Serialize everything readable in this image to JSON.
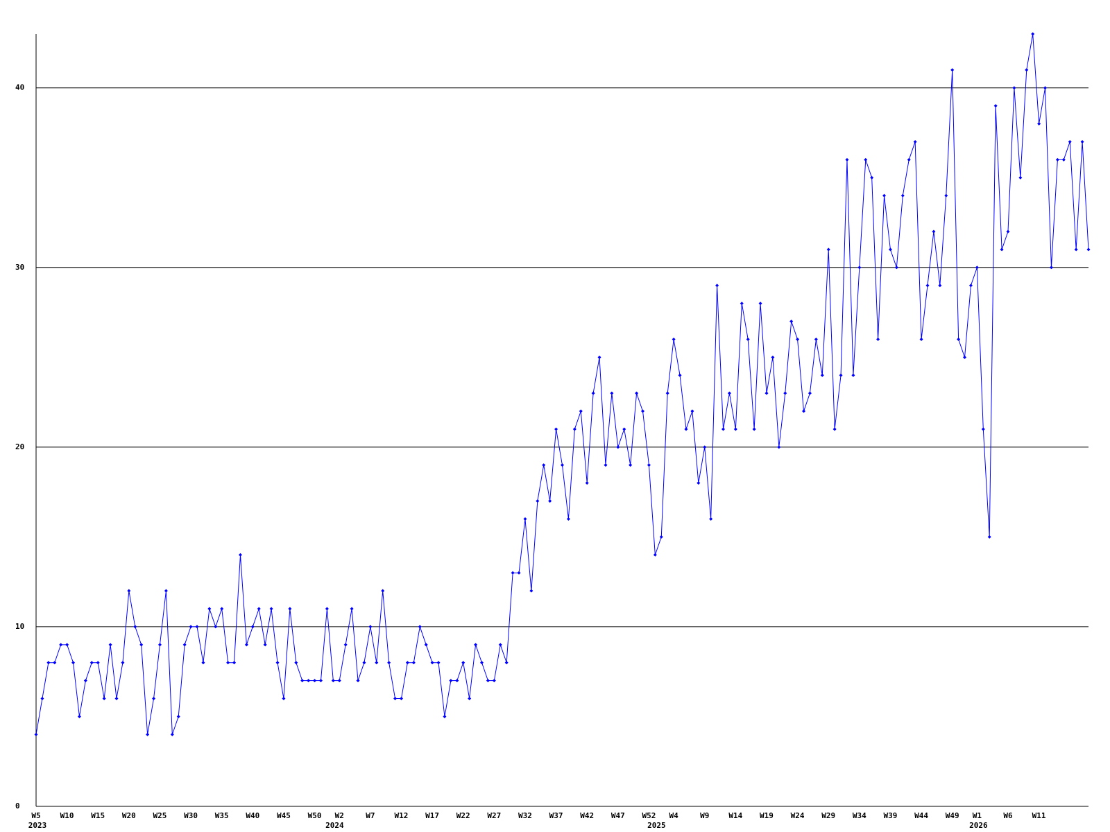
{
  "chart_data": {
    "type": "line",
    "categories": [
      "W5",
      null,
      null,
      null,
      null,
      "W10",
      null,
      null,
      null,
      null,
      "W15",
      null,
      null,
      null,
      null,
      "W20",
      null,
      null,
      null,
      null,
      "W25",
      null,
      null,
      null,
      null,
      "W30",
      null,
      null,
      null,
      null,
      "W35",
      null,
      null,
      null,
      null,
      "W40",
      null,
      null,
      null,
      null,
      "W45",
      null,
      null,
      null,
      null,
      "W50",
      null,
      null,
      null,
      "W2",
      null,
      null,
      null,
      null,
      "W7",
      null,
      null,
      null,
      null,
      "W12",
      null,
      null,
      null,
      null,
      "W17",
      null,
      null,
      null,
      null,
      "W22",
      null,
      null,
      null,
      null,
      "W27",
      null,
      null,
      null,
      null,
      "W32",
      null,
      null,
      null,
      null,
      "W37",
      null,
      null,
      null,
      null,
      "W42",
      null,
      null,
      null,
      null,
      "W47",
      null,
      null,
      null,
      null,
      "W52",
      null,
      null,
      null,
      "W4",
      null,
      null,
      null,
      null,
      "W9",
      null,
      null,
      null,
      null,
      "W14",
      null,
      null,
      null,
      null,
      "W19",
      null,
      null,
      null,
      null,
      "W24",
      null,
      null,
      null,
      null,
      "W29",
      null,
      null,
      null,
      null,
      "W34",
      null,
      null,
      null,
      null,
      "W39",
      null,
      null,
      null,
      null,
      "W44",
      null,
      null,
      null,
      null,
      "W49",
      null,
      null,
      null,
      "W1",
      null,
      null,
      null,
      null,
      "W6",
      null,
      null,
      null,
      null,
      "W11",
      null,
      null,
      null,
      null,
      null,
      null,
      null,
      null
    ],
    "year_labels": [
      "2023",
      null,
      null,
      null,
      null,
      null,
      null,
      null,
      null,
      null,
      null,
      null,
      null,
      null,
      null,
      null,
      null,
      null,
      null,
      null,
      null,
      null,
      null,
      null,
      null,
      null,
      null,
      null,
      null,
      null,
      null,
      null,
      null,
      null,
      null,
      null,
      null,
      null,
      null,
      null,
      null,
      null,
      null,
      null,
      null,
      null,
      null,
      null,
      "2024",
      null,
      null,
      null,
      null,
      null,
      null,
      null,
      null,
      null,
      null,
      null,
      null,
      null,
      null,
      null,
      null,
      null,
      null,
      null,
      null,
      null,
      null,
      null,
      null,
      null,
      null,
      null,
      null,
      null,
      null,
      null,
      null,
      null,
      null,
      null,
      null,
      null,
      null,
      null,
      null,
      null,
      null,
      null,
      null,
      null,
      null,
      null,
      null,
      null,
      null,
      null,
      "2025",
      null,
      null,
      null,
      null,
      null,
      null,
      null,
      null,
      null,
      null,
      null,
      null,
      null,
      null,
      null,
      null,
      null,
      null,
      null,
      null,
      null,
      null,
      null,
      null,
      null,
      null,
      null,
      null,
      null,
      null,
      null,
      null,
      null,
      null,
      null,
      null,
      null,
      null,
      null,
      null,
      null,
      null,
      null,
      null,
      null,
      null,
      null,
      null,
      null,
      null,
      null,
      "2026",
      null,
      null,
      null,
      null,
      null,
      null,
      null,
      null,
      null,
      null,
      null,
      null,
      null,
      null,
      null,
      null,
      null,
      null
    ],
    "series": [
      {
        "color": "#0000ff",
        "values": [
          4,
          6,
          8,
          8,
          9,
          9,
          8,
          5,
          7,
          8,
          8,
          6,
          9,
          6,
          8,
          12,
          10,
          9,
          4,
          6,
          9,
          12,
          4,
          5,
          9,
          10,
          10,
          8,
          11,
          10,
          11,
          8,
          8,
          14,
          9,
          10,
          11,
          9,
          11,
          8,
          6,
          11,
          8,
          7,
          7,
          7,
          7,
          11,
          7,
          7,
          9,
          11,
          7,
          8,
          10,
          8,
          12,
          8,
          6,
          6,
          8,
          8,
          10,
          9,
          8,
          8,
          5,
          7,
          7,
          8,
          6,
          9,
          8,
          7,
          7,
          9,
          8,
          13,
          13,
          16,
          12,
          17,
          19,
          17,
          21,
          19,
          16,
          21,
          22,
          18,
          23,
          25,
          19,
          23,
          20,
          21,
          19,
          23,
          22,
          19,
          14,
          15,
          23,
          26,
          24,
          21,
          22,
          18,
          20,
          16,
          29,
          21,
          23,
          21,
          28,
          26,
          21,
          28,
          23,
          25,
          20,
          23,
          27,
          26,
          22,
          23,
          26,
          24,
          31,
          21,
          24,
          36,
          24,
          30,
          36,
          35,
          26,
          34,
          31,
          30,
          34,
          36,
          37,
          26,
          29,
          32,
          29,
          34,
          41,
          26,
          25,
          29,
          30,
          21,
          15,
          39,
          31,
          32,
          40,
          35,
          41,
          43,
          38,
          40,
          30,
          36,
          36,
          37,
          31,
          37,
          31
        ]
      }
    ],
    "ylim": [
      0,
      43
    ],
    "yticks": [
      0,
      10,
      20,
      30,
      40
    ],
    "grid": true
  }
}
